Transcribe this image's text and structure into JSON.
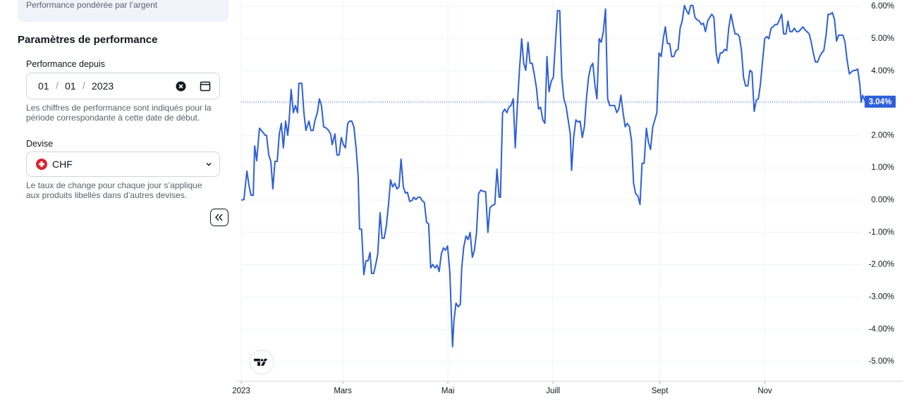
{
  "sidebar": {
    "top_card_text": "Performance pondérée par l’argent",
    "section_title": "Paramètres de performance",
    "date_label": "Performance depuis",
    "date": {
      "day": "01",
      "month": "01",
      "year": "2023",
      "separator": "/"
    },
    "date_help": [
      "Les chiffres de performance sont indiqués pour la",
      "période correspondante à cette date de début."
    ],
    "currency_label": "Devise",
    "currency": "CHF",
    "currency_help": [
      "Le taux de change pour chaque jour s’applique",
      "aux produits libellés dans d’autres devises."
    ]
  },
  "chart_data": {
    "type": "line",
    "color": "#2e5fd9",
    "x": [
      0,
      1.6,
      3.3,
      4.5,
      5.7,
      7.0,
      7.8,
      9.0,
      10.6,
      12.3,
      13.9,
      14.7,
      16.0,
      17.2,
      18.4,
      19.6,
      20.9,
      22.1,
      23.3,
      24.5,
      25.8,
      27.0,
      27.8,
      29.0,
      30.3,
      31.5,
      32.7,
      33.5,
      35.2,
      36.4,
      37.6,
      39.3,
      40.5,
      41.7,
      42.9,
      44.2,
      45.4,
      46.6,
      47.9,
      49.5,
      50.7,
      51.9,
      52.8,
      54.4,
      55.6,
      56.9,
      58.1,
      59.3,
      60.5,
      61.8,
      63.0,
      64.2,
      65.4,
      66.7,
      67.9,
      68.7,
      69.9,
      71.2,
      72.4,
      73.6,
      74.8,
      75.7,
      76.9,
      78.1,
      79.3,
      80.6,
      81.8,
      83.0,
      84.3,
      85.5,
      86.7,
      87.9,
      89.2,
      90.4,
      91.6,
      92.8,
      94.1,
      95.3,
      96.5,
      97.8,
      99.0,
      100.2,
      101.4,
      102.7,
      103.9,
      105.1,
      106.3,
      107.6,
      108.8,
      110.0,
      111.2,
      112.5,
      113.7,
      114.9,
      116.2,
      117.4,
      118.6,
      119.8,
      121.1,
      121.9,
      122.7,
      123.5,
      124.7,
      126.0,
      127.2,
      128.0,
      129.2,
      130.5,
      131.7,
      132.9,
      134.2,
      135.4,
      136.6,
      137.8,
      139.1,
      140.3,
      141.9,
      143.2,
      144.4,
      145.6,
      147.2,
      148.5,
      149.7,
      150.5,
      151.7,
      153.0,
      154.2,
      155.4,
      156.6,
      157.9,
      159.1,
      160.3,
      161.5,
      162.8,
      164.0,
      165.2,
      166.5,
      167.7,
      168.9,
      170.1,
      171.4,
      172.6,
      173.8,
      175.1,
      176.3,
      177.5,
      178.7,
      180.0,
      181.2,
      182.4,
      183.6,
      184.9,
      186.1,
      187.3,
      188.5,
      189.8,
      191.0,
      191.8,
      193.0,
      194.3,
      195.5,
      196.7,
      198.0,
      199.2,
      200.4,
      201.6,
      202.9,
      204.1,
      205.3,
      206.5,
      207.8,
      209.0,
      210.2,
      211.5,
      212.7,
      213.9,
      215.1,
      216.8,
      218.0,
      219.2,
      220.4,
      221.7,
      222.9,
      224.1,
      225.4,
      226.6,
      227.8,
      229.0,
      230.3,
      231.5,
      232.7,
      233.9,
      235.2,
      236.4,
      237.6,
      238.9,
      240.1,
      241.3,
      242.5,
      243.8,
      245.0,
      246.2,
      247.4,
      248.7,
      249.9,
      251.1,
      252.4,
      253.6,
      254.8,
      256.0,
      257.3,
      258.5,
      259.7,
      260.9,
      262.2,
      263.4,
      264.6,
      265.9,
      267.1,
      268.3,
      269.5,
      270.8,
      272.0,
      273.2,
      274.4,
      275.7,
      276.9,
      278.1,
      279.3,
      280.6,
      281.8,
      283.0,
      284.3,
      285.5,
      286.7,
      287.9,
      289.2,
      290.4,
      291.6,
      292.8,
      294.1,
      295.3,
      296.5,
      297.8,
      299.0,
      300.2,
      301.4,
      302.7,
      303.9,
      305.1,
      306.3,
      307.6,
      308.8,
      310.0,
      311.2,
      312.5,
      313.7,
      314.9,
      316.2,
      317.4,
      318.6,
      319.8,
      321.1,
      322.3,
      323.5,
      324.7,
      326.0,
      327.2,
      328.4,
      329.7,
      330.9,
      332.1,
      333.3,
      334.6,
      335.8,
      337.0,
      338.2,
      339.5,
      340.7,
      341.9,
      343.2,
      344.4,
      345.6,
      346.8,
      348.1,
      349.3,
      350.5,
      351.7,
      353.0,
      354.2,
      355.4,
      356.6,
      357.9,
      359.1,
      359.9,
      360.7,
      362.4
    ],
    "values": [
      0,
      0.02,
      0.9,
      0.46,
      0.15,
      0.15,
      1.68,
      1.22,
      2.23,
      2.12,
      2.01,
      2.01,
      1.4,
      1.2,
      0.35,
      1.2,
      1.2,
      2.05,
      2.38,
      1.62,
      2.45,
      2.01,
      2.45,
      3.43,
      2.71,
      2.93,
      2.71,
      3.62,
      3.62,
      2.71,
      2.16,
      2.45,
      2.16,
      2.16,
      2.49,
      2.71,
      3.14,
      2.93,
      2.27,
      2.23,
      2.16,
      2.05,
      1.72,
      2.05,
      1.4,
      1.4,
      1.94,
      1.72,
      1.62,
      2.38,
      2.45,
      2.45,
      2.27,
      1.62,
      0.74,
      -0.9,
      -0.9,
      -2.31,
      -1.88,
      -1.88,
      -1.62,
      -2.27,
      -2.27,
      -1.99,
      -1.66,
      -0.39,
      -1.18,
      -1.18,
      -0.79,
      -0.13,
      0.63,
      0.41,
      0.52,
      0.35,
      0.41,
      1.27,
      0.41,
      0.22,
      0.24,
      -0.04,
      -0.02,
      0.09,
      0.02,
      0.09,
      0.09,
      -0.02,
      -0.07,
      -0.68,
      -0.74,
      -2.1,
      -1.99,
      -2.1,
      -2.01,
      -2.21,
      -1.66,
      -1.48,
      -1.55,
      -1.42,
      -2.21,
      -3.41,
      -4.54,
      -3.73,
      -3.19,
      -3.3,
      -3.23,
      -2.1,
      -1.44,
      -1.11,
      -1.22,
      -1.0,
      -1.77,
      -1.55,
      -1.0,
      0.2,
      0.31,
      0.28,
      0.26,
      -1.0,
      -0.24,
      -0.17,
      -0.13,
      0.96,
      0.09,
      0.09,
      2.71,
      2.82,
      2.71,
      2.88,
      2.93,
      3.14,
      1.62,
      2.93,
      4.02,
      5.0,
      4.24,
      4.02,
      4.89,
      4.24,
      4.24,
      3.91,
      3.47,
      2.82,
      2.88,
      2.49,
      2.38,
      4.45,
      3.36,
      3.69,
      3.8,
      4.89,
      5.87,
      5.87,
      3.8,
      3.14,
      2.93,
      2.49,
      2.05,
      0.92,
      1.94,
      2.49,
      2.42,
      2.45,
      1.94,
      2.27,
      3.14,
      3.8,
      4.13,
      4.24,
      3.58,
      3.14,
      5.0,
      4.89,
      5.22,
      5.92,
      3.14,
      2.93,
      2.93,
      2.93,
      2.71,
      2.82,
      3.25,
      2.71,
      2.27,
      2.38,
      2.27,
      1.83,
      0.52,
      0.2,
      0.13,
      -0.13,
      1.14,
      1.14,
      2.23,
      1.79,
      1.57,
      2.27,
      2.49,
      2.71,
      4.56,
      4.45,
      5.0,
      5.37,
      4.85,
      4.85,
      4.45,
      4.45,
      4.63,
      4.67,
      5.33,
      5.55,
      6.03,
      5.87,
      5.76,
      6.03,
      6.03,
      5.66,
      5.59,
      5.55,
      5.44,
      5.48,
      5.22,
      5.55,
      5.66,
      5.76,
      5.66,
      4.56,
      4.24,
      4.56,
      4.56,
      4.67,
      4.63,
      5.33,
      5.76,
      5.44,
      5.15,
      5.15,
      5.07,
      4.63,
      3.8,
      3.54,
      3.54,
      4.02,
      3.97,
      2.75,
      3.1,
      3.14,
      3.58,
      4.34,
      5.0,
      5.07,
      5.0,
      5.33,
      5.37,
      5.44,
      5.44,
      5.59,
      5.76,
      5.15,
      5.15,
      5.55,
      5.22,
      5.22,
      5.33,
      5.22,
      5.22,
      5.28,
      5.37,
      5.28,
      5.22,
      5.15,
      4.89,
      4.56,
      4.28,
      4.28,
      4.45,
      4.56,
      4.63,
      5.11,
      5.76,
      5.76,
      5.81,
      5.59,
      4.93,
      5.11,
      5.11,
      5.11,
      4.89,
      4.34,
      3.91,
      3.97,
      4.02,
      4.02,
      4.06,
      3.58,
      3.03,
      3.25,
      3.04
    ],
    "last_value_label": "3.04%",
    "xlim": [
      0,
      384
    ],
    "xticks": [
      {
        "value": 0,
        "label": "2023"
      },
      {
        "value": 59,
        "label": "Mars"
      },
      {
        "value": 120,
        "label": "Mai"
      },
      {
        "value": 181,
        "label": "Juill"
      },
      {
        "value": 243,
        "label": "Sept"
      },
      {
        "value": 304,
        "label": "Nov"
      }
    ],
    "ylim": [
      -5.61,
      6.2
    ],
    "yticks": [
      {
        "value": -5,
        "label": "-5.00%"
      },
      {
        "value": -4,
        "label": "-4.00%"
      },
      {
        "value": -3,
        "label": "-3.00%"
      },
      {
        "value": -2,
        "label": "-2.00%"
      },
      {
        "value": -1,
        "label": "-1.00%"
      },
      {
        "value": 0,
        "label": "0.00%"
      },
      {
        "value": 1,
        "label": "1.00%"
      },
      {
        "value": 2,
        "label": "2.00%"
      },
      {
        "value": 3,
        "label": "3.00%"
      },
      {
        "value": 4,
        "label": "4.00%"
      },
      {
        "value": 5,
        "label": "5.00%"
      },
      {
        "value": 6,
        "label": "6.00%"
      }
    ],
    "grid": true
  }
}
